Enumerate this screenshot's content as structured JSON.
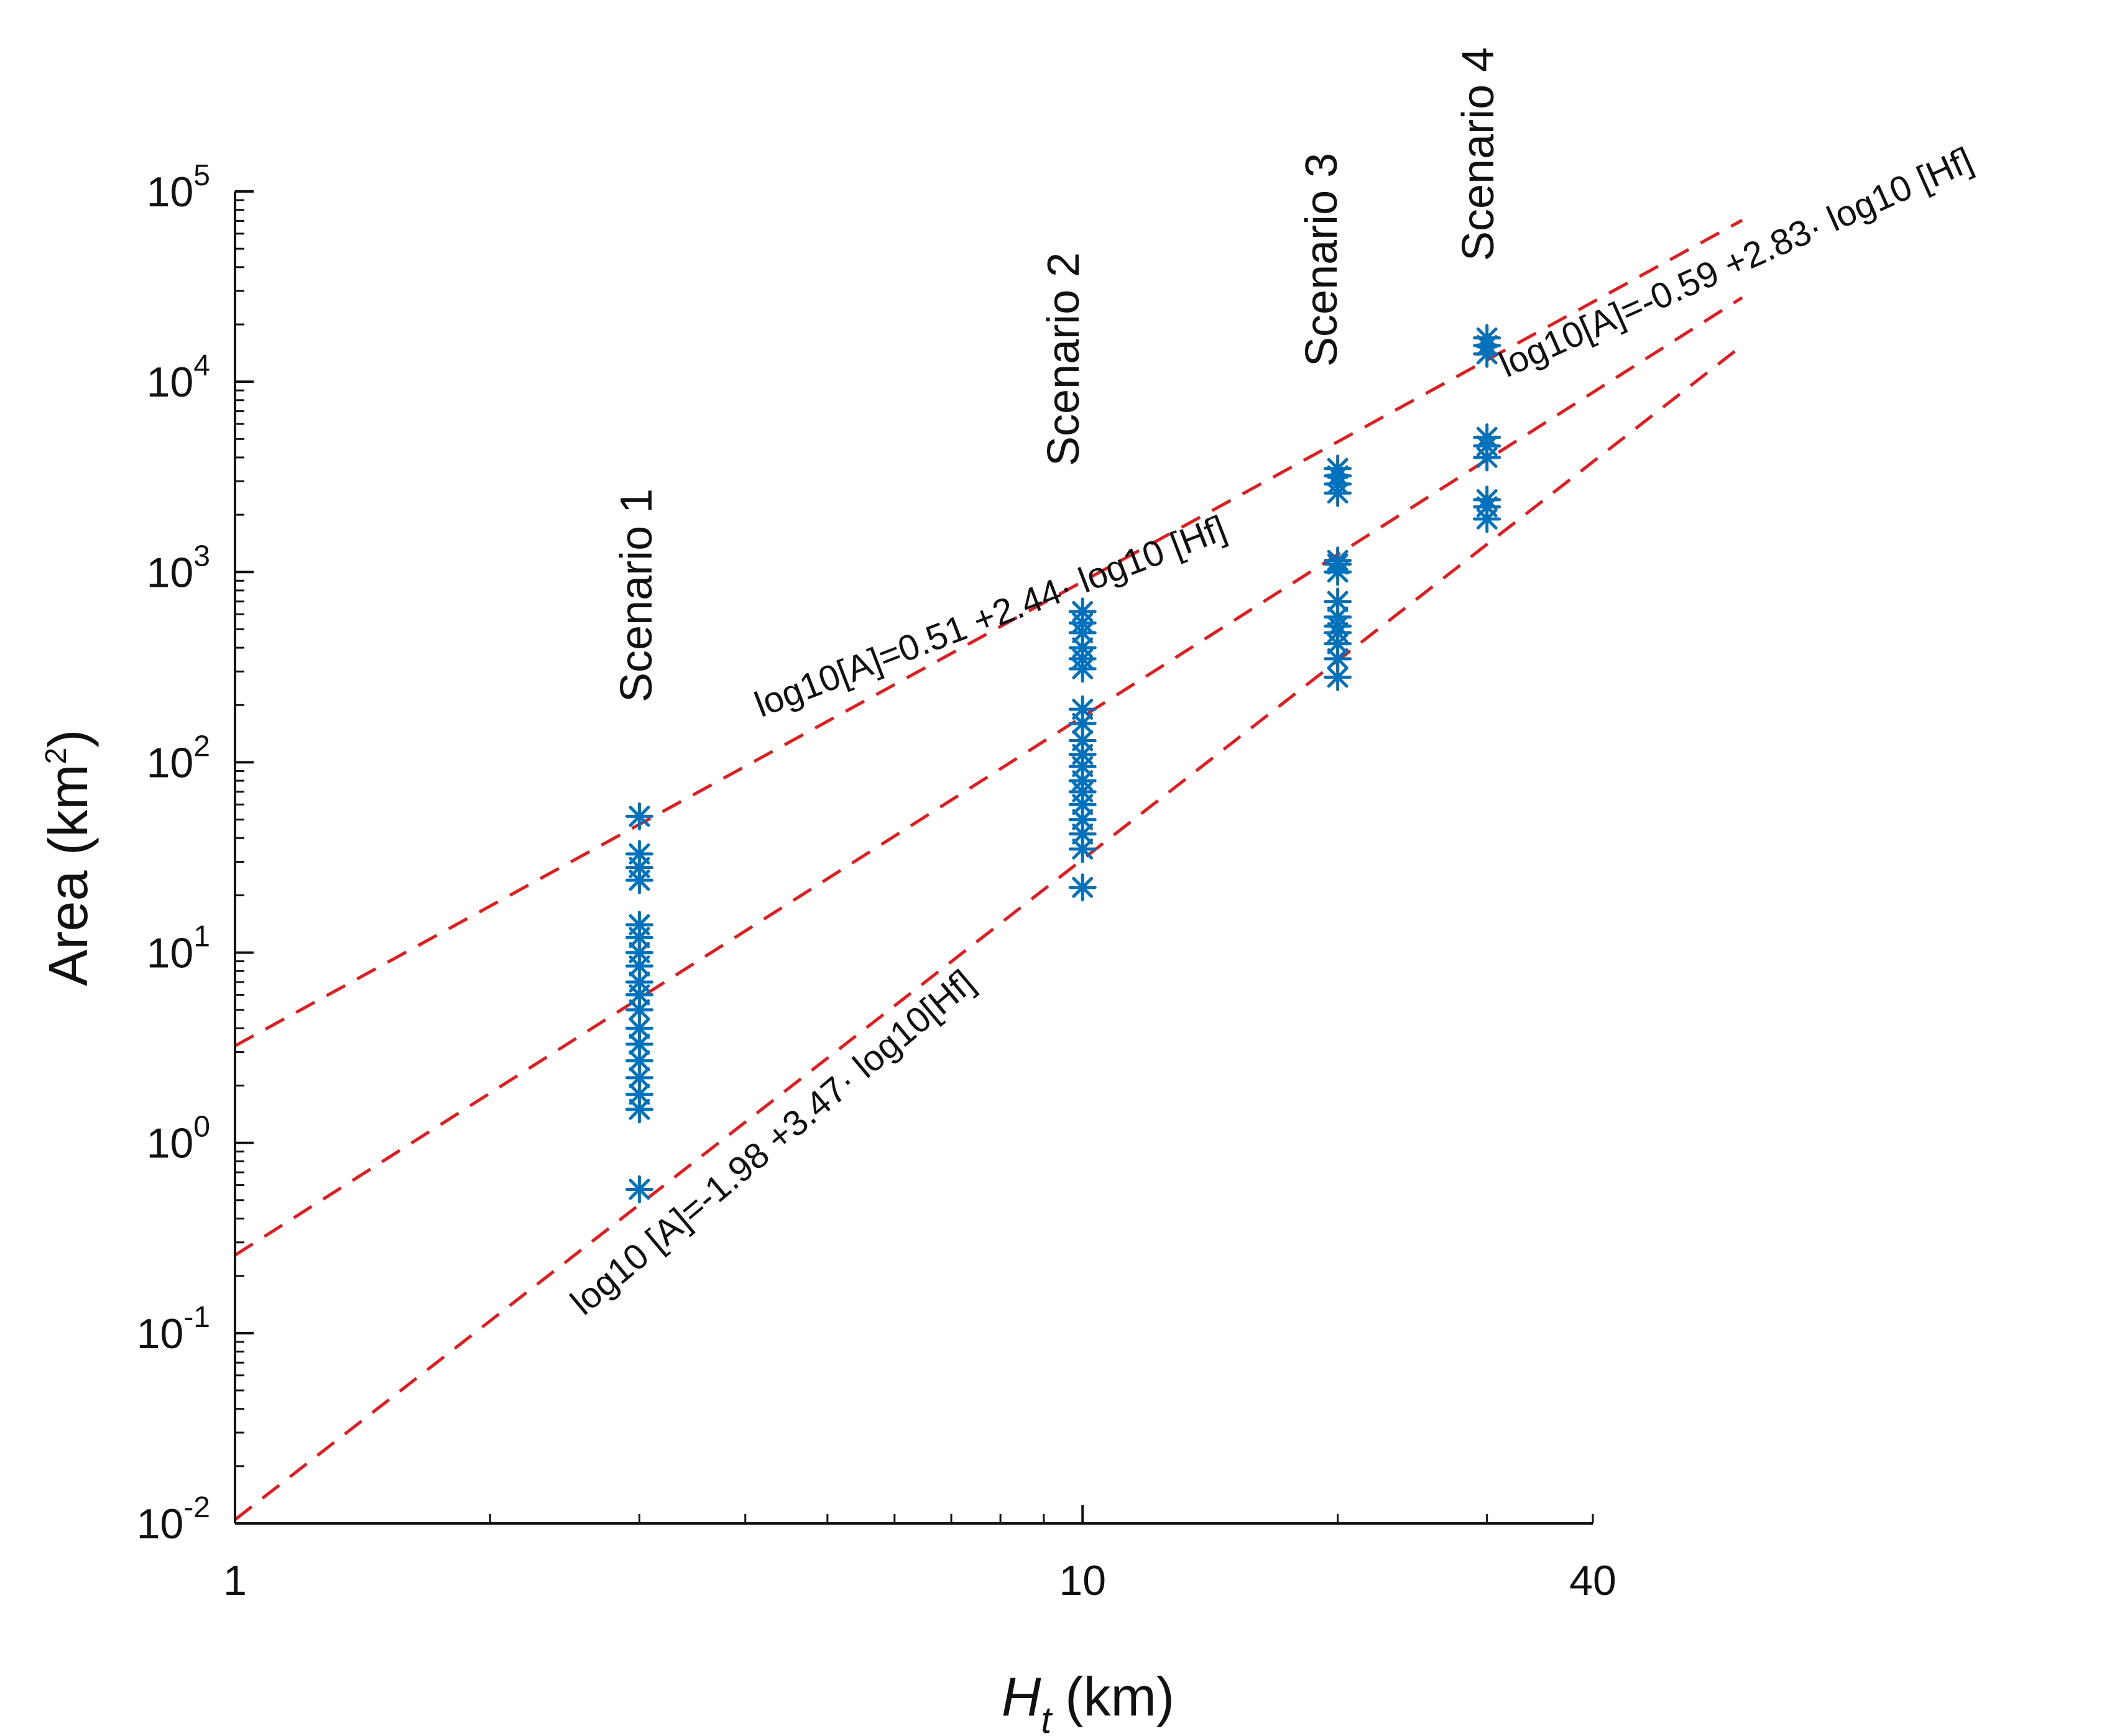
{
  "chart_data": {
    "type": "scatter",
    "xscale": "log",
    "yscale": "log",
    "xlim": [
      1,
      40
    ],
    "ylim": [
      0.01,
      100000
    ],
    "xticks": [
      {
        "value": 1,
        "label": "1"
      },
      {
        "value": 10,
        "label": "10"
      },
      {
        "value": 40,
        "label": "40"
      }
    ],
    "yticks": [
      {
        "value": 0.01,
        "base": "10",
        "exp": "-2"
      },
      {
        "value": 0.1,
        "base": "10",
        "exp": "-1"
      },
      {
        "value": 1,
        "base": "10",
        "exp": "0"
      },
      {
        "value": 10,
        "base": "10",
        "exp": "1"
      },
      {
        "value": 100,
        "base": "10",
        "exp": "2"
      },
      {
        "value": 1000,
        "base": "10",
        "exp": "3"
      },
      {
        "value": 10000,
        "base": "10",
        "exp": "4"
      },
      {
        "value": 100000,
        "base": "10",
        "exp": "5"
      }
    ],
    "xlabel": {
      "symbol": "H",
      "subscript": "t",
      "unit": "(km)"
    },
    "ylabel": {
      "prefix": "Area (km",
      "sup": "2",
      "suffix": ")"
    },
    "marker_color": "#0072BD",
    "line_color": "#E8191B",
    "series": [
      {
        "name": "Scenario 1",
        "x": 3,
        "y": [
          0.57,
          1.5,
          1.8,
          2.2,
          2.7,
          3.3,
          4.0,
          5.0,
          6.0,
          7.0,
          8.5,
          10,
          12,
          14,
          24,
          28,
          33,
          52
        ]
      },
      {
        "name": "Scenario 2",
        "x": 10,
        "y": [
          22,
          35,
          42,
          50,
          60,
          70,
          80,
          95,
          110,
          130,
          160,
          190,
          310,
          350,
          400,
          480,
          540,
          620
        ]
      },
      {
        "name": "Scenario 3",
        "x": 20,
        "y": [
          280,
          350,
          420,
          480,
          520,
          580,
          700,
          1000,
          1100,
          1150,
          2600,
          2900,
          3200,
          3500
        ]
      },
      {
        "name": "Scenario 4",
        "x": 30,
        "y": [
          1900,
          2200,
          2400,
          4000,
          4600,
          5100,
          14000,
          15500,
          17000
        ]
      }
    ],
    "fits": [
      {
        "intercept": 0.51,
        "slope": 2.44,
        "label": "log10[A]=0.51 +2.44· log10 [Hf]"
      },
      {
        "intercept": -0.59,
        "slope": 2.83,
        "label": "log10[A]=-0.59 +2.83· log10 [Hf]"
      },
      {
        "intercept": -1.98,
        "slope": 3.47,
        "label": "log10 [A]=-1.98 +3.47· log10[Hf]"
      }
    ],
    "fit_x_range": [
      1,
      60
    ]
  }
}
